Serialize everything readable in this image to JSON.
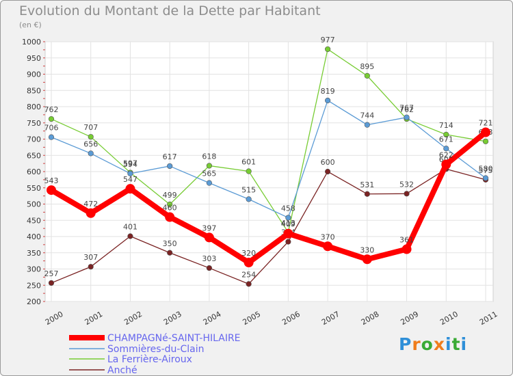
{
  "title": "Evolution du Montant de la Dette par Habitant",
  "subtitle": "(en €)",
  "logo": {
    "letters": [
      "P",
      "r",
      "o",
      "x",
      "i",
      "t",
      "i"
    ],
    "colors": [
      "#2f8fd8",
      "#f07d1c",
      "#3aaa35",
      "#f07d1c",
      "#2f8fd8",
      "#3aaa35",
      "#2f8fd8"
    ]
  },
  "chart_data": {
    "type": "line",
    "x": [
      "2000",
      "2001",
      "2002",
      "2003",
      "2004",
      "2005",
      "2006",
      "2007",
      "2008",
      "2009",
      "2010",
      "2011"
    ],
    "ylim": [
      200,
      1000
    ],
    "yticks": [
      200,
      250,
      300,
      350,
      400,
      450,
      500,
      550,
      600,
      650,
      700,
      750,
      800,
      850,
      900,
      950,
      1000
    ],
    "grid": true,
    "legend_position": "bottom-left",
    "series": [
      {
        "name": "CHAMPAGNé-SAINT-HILAIRE",
        "color": "#ff0000",
        "values": [
          543,
          472,
          547,
          460,
          397,
          320,
          409,
          370,
          330,
          361,
          622,
          721
        ],
        "labels": [
          "543",
          "472",
          "547",
          "460",
          "397",
          "320",
          "409",
          "370",
          "330",
          "361",
          "622",
          "721"
        ]
      },
      {
        "name": "Sommières-du-Clain",
        "color": "#5b9bd5",
        "values": [
          706,
          656,
          594,
          617,
          565,
          515,
          458,
          819,
          744,
          767,
          671,
          580
        ],
        "labels": [
          "706",
          "656",
          "594",
          "617",
          "565",
          "515",
          "458",
          "819",
          "744",
          "767",
          "671",
          "580"
        ]
      },
      {
        "name": "La Ferrière-Airoux",
        "color": "#77cc33",
        "values": [
          762,
          707,
          597,
          499,
          618,
          601,
          413,
          977,
          895,
          762,
          714,
          693
        ],
        "labels": [
          "762",
          "707",
          "597",
          "499",
          "618",
          "601",
          "413",
          "977",
          "895",
          "762",
          "714",
          "693"
        ]
      },
      {
        "name": "Anché",
        "color": "#7a2323",
        "values": [
          257,
          307,
          401,
          350,
          303,
          254,
          384,
          600,
          531,
          532,
          608,
          575
        ],
        "labels": [
          "257",
          "307",
          "401",
          "350",
          "303",
          "254",
          "384",
          "600",
          "531",
          "532",
          "608",
          "575"
        ]
      }
    ]
  }
}
